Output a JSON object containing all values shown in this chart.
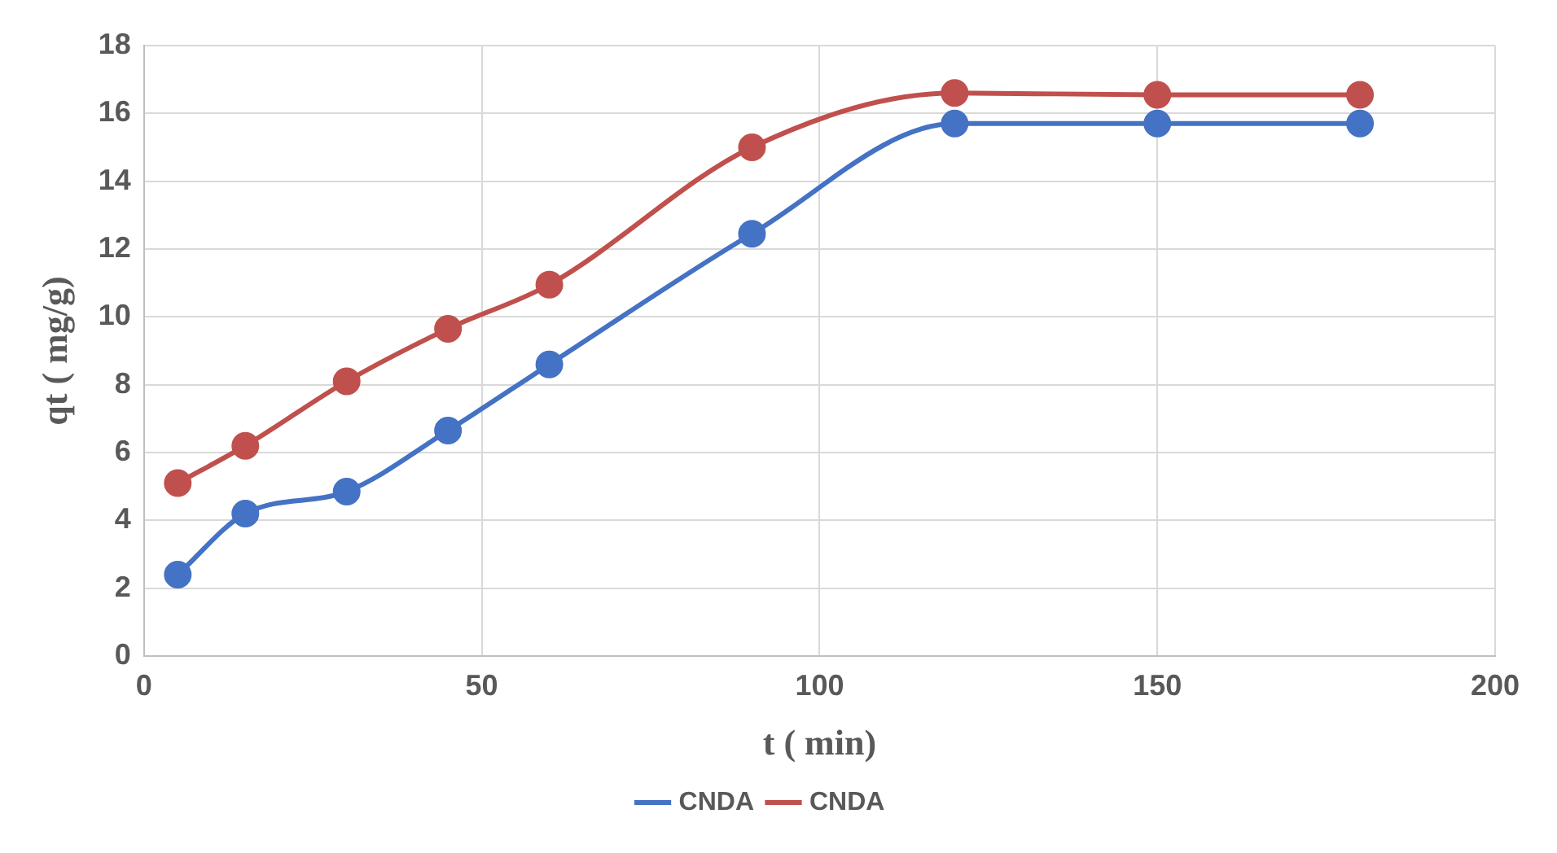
{
  "chart_data": {
    "type": "line",
    "xlabel": "t ( min)",
    "ylabel": "qt ( mg/g)",
    "x": [
      5,
      15,
      30,
      45,
      60,
      90,
      120,
      150,
      180
    ],
    "series": [
      {
        "name": "CNDA",
        "color": "#4472c4",
        "values": [
          2.4,
          4.2,
          4.85,
          6.65,
          8.6,
          12.45,
          15.7,
          15.7,
          15.7
        ]
      },
      {
        "name": "CNDA",
        "color": "#c0504d",
        "values": [
          5.1,
          6.2,
          8.1,
          9.65,
          10.95,
          15.0,
          16.6,
          16.55,
          16.55
        ]
      }
    ],
    "xlim": [
      0,
      200
    ],
    "xticks": [
      0,
      50,
      100,
      150,
      200
    ],
    "ylim": [
      0,
      18
    ],
    "yticks": [
      0,
      2,
      4,
      6,
      8,
      10,
      12,
      14,
      16,
      18
    ],
    "grid": true,
    "legend": "bottom",
    "marker": "circle",
    "line_style": "solid"
  }
}
